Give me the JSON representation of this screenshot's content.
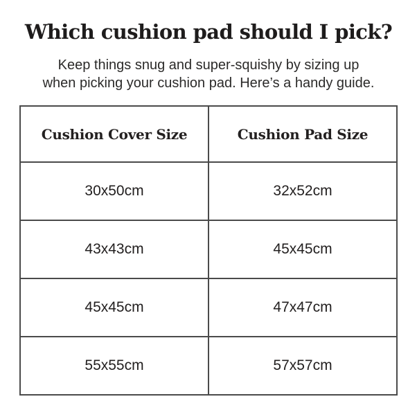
{
  "page": {
    "title": "Which cushion pad should I pick?",
    "subtitle": "Keep things snug and super-squishy by sizing up\nwhen picking your cushion pad. Here’s a handy guide."
  },
  "table": {
    "columns": [
      "Cushion Cover Size",
      "Cushion Pad Size"
    ],
    "rows": [
      [
        "30x50cm",
        "32x52cm"
      ],
      [
        "43x43cm",
        "45x45cm"
      ],
      [
        "45x45cm",
        "47x47cm"
      ],
      [
        "55x55cm",
        "57x57cm"
      ]
    ]
  },
  "colors": {
    "background": "#ffffff",
    "text": "#232020",
    "border": "#4a4a4a"
  }
}
